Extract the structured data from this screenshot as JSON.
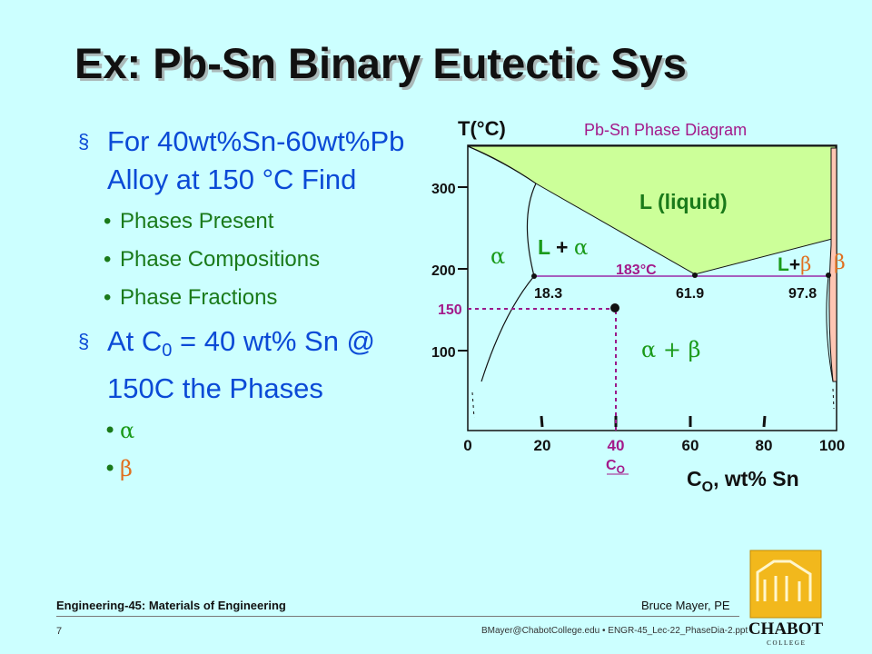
{
  "slide": {
    "title": "Ex: Pb-Sn Binary Eutectic Sys",
    "bullets": [
      {
        "text": "For 40wt%Sn-60wt%Pb Alloy at 150 °C Find",
        "sub": [
          "Phases Present",
          "Phase Compositions",
          "Phase Fractions"
        ]
      },
      {
        "text_prefix": "At C",
        "text_sub": "0",
        "text_suffix": " = 40 wt% Sn @ 150C the Phases",
        "sub": [
          "α",
          "β"
        ]
      }
    ],
    "bullet_marker": "§",
    "sub_marker": "•"
  },
  "diagram": {
    "y_axis_label": "T(°C)",
    "caption": "Pb-Sn Phase Diagram",
    "x_axis_label_main": "C",
    "x_axis_label_sub": "O",
    "x_axis_label_rest": ", wt% Sn",
    "y_ticks": [
      "300",
      "200",
      "100"
    ],
    "x_ticks": [
      "0",
      "20",
      "40",
      "60",
      "80",
      "100"
    ],
    "x_highlight_label": "40",
    "co_label_main": "C",
    "co_label_sub": "O",
    "region_labels": {
      "liquid": "L (liquid)",
      "l_alpha_L": "L",
      "l_alpha_plus": " + ",
      "l_alpha_alpha": "α",
      "alpha": "α",
      "beta": "β",
      "l_beta_L": "L",
      "l_beta_plus": "+",
      "l_beta_beta": "β",
      "alpha_beta": "α + β"
    },
    "eutectic_temp": "183°C",
    "compositions": [
      "18.3",
      "61.9",
      "97.8"
    ],
    "marked_temp": "150",
    "colors": {
      "liquid": "#ccff99",
      "beta_region": "#ffc6b3",
      "eutectic_line": "#9a2aa8",
      "guide_line": "#9a1a8a",
      "alpha_text": "#1a9a1a",
      "beta_text": "#e07020"
    }
  },
  "footer": {
    "course": "Engineering-45: Materials of Engineering",
    "author": "Bruce Mayer, PE",
    "page": "7",
    "file": "BMayer@ChabotCollege.edu  • ENGR-45_Lec-22_PhaseDia-2.ppt",
    "logo_text": "CHABOT",
    "logo_subtext": "C O L L E G E"
  }
}
